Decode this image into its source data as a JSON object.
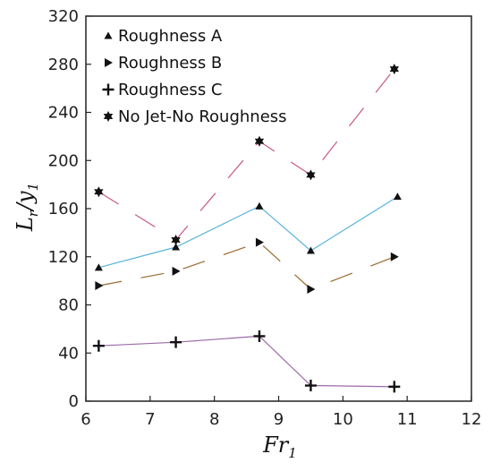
{
  "chart_data": {
    "type": "line",
    "xlabel": {
      "main": "Fr",
      "sub": "1"
    },
    "ylabel": {
      "main": "L",
      "sub1": "r",
      "mid": "/y",
      "sub2": "1"
    },
    "xlim": [
      6,
      12
    ],
    "ylim": [
      0,
      320
    ],
    "xticks": [
      6,
      7,
      8,
      9,
      10,
      11,
      12
    ],
    "yticks": [
      0,
      40,
      80,
      120,
      160,
      200,
      240,
      280,
      320
    ],
    "legend_position": "top-left",
    "grid": false,
    "series": [
      {
        "name": "Roughness A",
        "marker": "triangle-up",
        "line": "solid",
        "color": "#58b4dc",
        "x": [
          6.2,
          7.4,
          8.7,
          9.5,
          10.85
        ],
        "y": [
          111,
          128,
          162,
          125,
          170
        ]
      },
      {
        "name": "Roughness B",
        "marker": "triangle-right",
        "line": "dashed",
        "color": "#9a6a2e",
        "x": [
          6.2,
          7.4,
          8.7,
          9.5,
          10.8
        ],
        "y": [
          96,
          108,
          132,
          93,
          120
        ]
      },
      {
        "name": "Roughness C",
        "marker": "plus",
        "line": "solid",
        "color": "#9b6aa8",
        "x": [
          6.2,
          7.4,
          8.7,
          9.5,
          10.8
        ],
        "y": [
          46,
          49,
          54,
          13,
          12
        ]
      },
      {
        "name": "No Jet-No Roughness",
        "marker": "star",
        "line": "dashed",
        "color": "#c8578a",
        "x": [
          6.2,
          7.4,
          8.7,
          9.5,
          10.8
        ],
        "y": [
          174,
          134,
          216,
          188,
          276
        ]
      }
    ]
  }
}
